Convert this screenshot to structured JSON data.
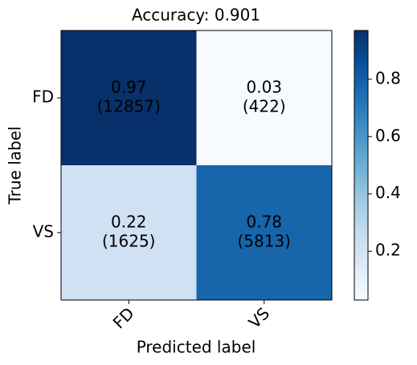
{
  "chart_data": {
    "type": "heatmap",
    "title": "Accuracy: 0.901",
    "xlabel": "Predicted label",
    "ylabel": "True label",
    "x_categories": [
      "FD",
      "VS"
    ],
    "y_categories": [
      "FD",
      "VS"
    ],
    "values": [
      [
        0.97,
        0.03
      ],
      [
        0.22,
        0.78
      ]
    ],
    "counts": [
      [
        12857,
        422
      ],
      [
        1625,
        5813
      ]
    ],
    "count_labels": [
      [
        "(12857)",
        "(422)"
      ],
      [
        "(1625)",
        "(5813)"
      ]
    ],
    "colormap": "Blues",
    "clim": [
      0.03,
      0.97
    ],
    "cticks": [
      0.2,
      0.4,
      0.6,
      0.8
    ]
  }
}
